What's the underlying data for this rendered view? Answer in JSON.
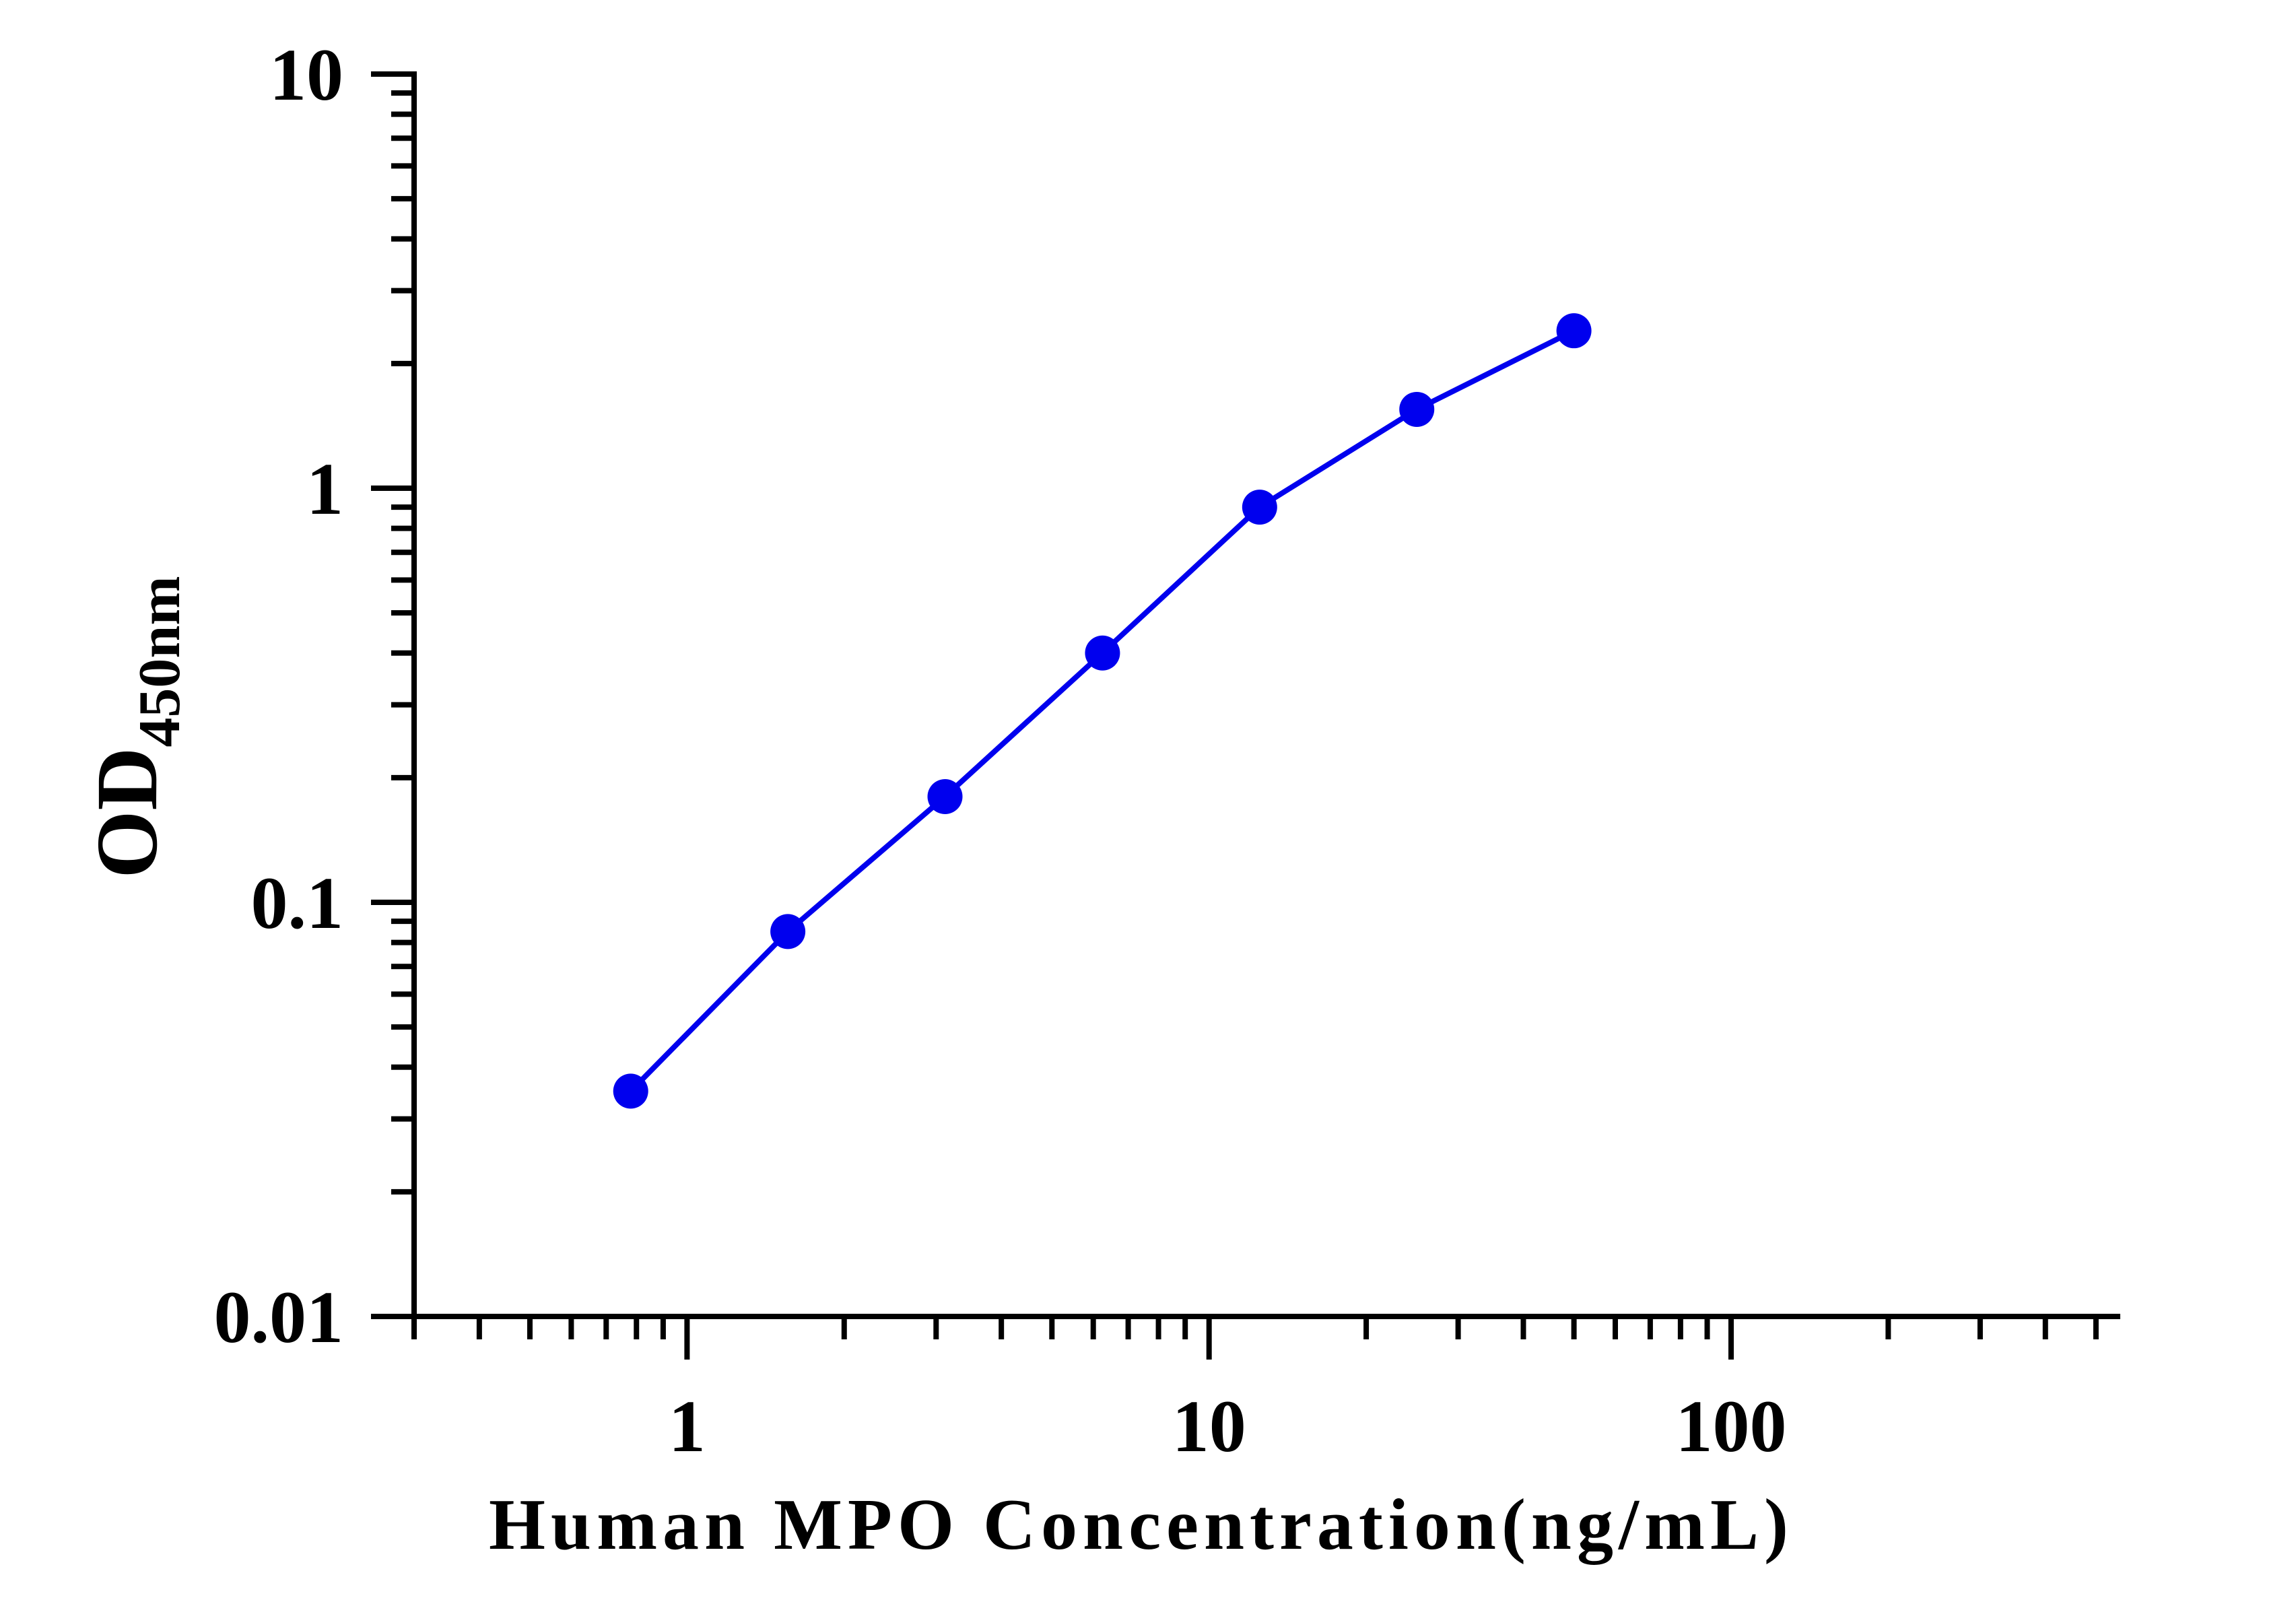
{
  "chart_data": {
    "type": "line",
    "x_scale": "log",
    "y_scale": "log",
    "xlim": [
      0.3,
      550
    ],
    "ylim": [
      0.01,
      10
    ],
    "x_ticks": [
      1,
      10,
      100
    ],
    "x_tick_labels": [
      "1",
      "10",
      "100"
    ],
    "y_ticks": [
      0.01,
      0.1,
      1,
      10
    ],
    "y_tick_labels": [
      "0.01",
      "0.1",
      "1",
      "10"
    ],
    "xlabel": "Human MPO Concentration(ng/mL)",
    "ylabel_main": "OD",
    "ylabel_sub": "450nm",
    "grid": false,
    "series": [
      {
        "color": "#0000ee",
        "marker": "circle",
        "x": [
          0.78,
          1.56,
          3.12,
          6.25,
          12.5,
          25,
          50
        ],
        "y": [
          0.035,
          0.085,
          0.18,
          0.4,
          0.9,
          1.55,
          2.4
        ]
      }
    ]
  }
}
